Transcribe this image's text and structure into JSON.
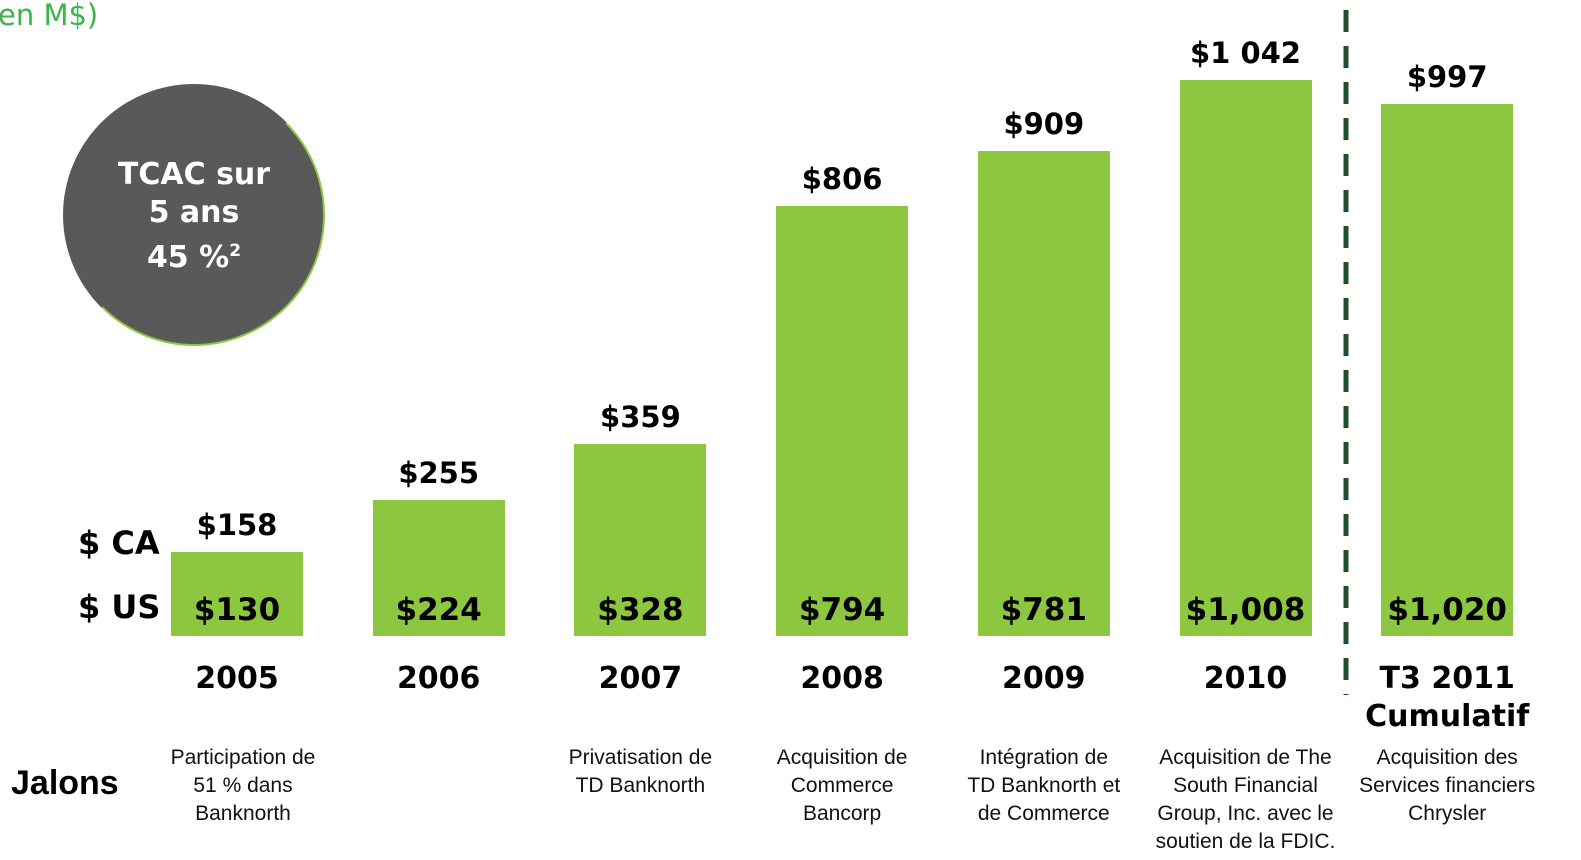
{
  "chart_data": {
    "type": "bar",
    "title": "en M$)",
    "categories": [
      "2005",
      "2006",
      "2007",
      "2008",
      "2009",
      "2010",
      "T3 2011 Cumulatif"
    ],
    "series": [
      {
        "name": "$ CA",
        "color": "#8dc63f",
        "values": [
          158,
          255,
          359,
          806,
          909,
          1042,
          997
        ],
        "value_labels": [
          "$158",
          "$255",
          "$359",
          "$806",
          "$909",
          "$1 042",
          "$997"
        ]
      },
      {
        "name": "$ US",
        "values": [
          130,
          224,
          328,
          794,
          781,
          1008,
          1020
        ],
        "value_labels": [
          "$130",
          "$224",
          "$328",
          "$794",
          "$781",
          "$1,008",
          "$1,020"
        ]
      }
    ],
    "annotation": {
      "line1": "TCAC sur",
      "line2": "5 ans",
      "line3": "45 %",
      "footnote": "2"
    },
    "milestones_label": "Jalons",
    "milestones": [
      "Participation de\n51 % dans\nBanknorth",
      null,
      "Privatisation de\nTD Banknorth",
      "Acquisition de\nCommerce\nBancorp",
      "Intégration de\nTD Banknorth et\nde Commerce",
      "Acquisition de The\nSouth Financial\nGroup, Inc. avec le\nsoutien de la FDIC.",
      "Acquisition des\nServices financiers\nChrysler"
    ]
  }
}
